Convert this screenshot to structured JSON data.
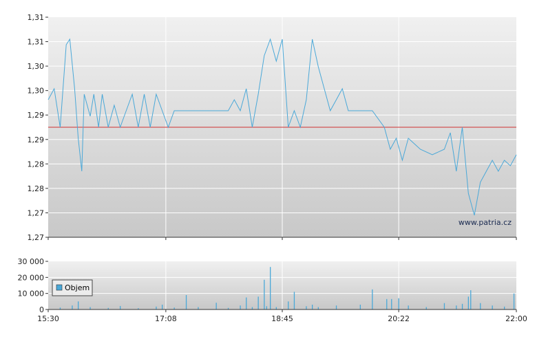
{
  "watermark": "www.patria.cz",
  "colors": {
    "price_line": "#4aa8d8",
    "reference_line": "#d03030",
    "volume_bar": "#4aa8d8",
    "grid": "#ffffff",
    "legend_swatch": "#4aa8d8"
  },
  "chart_data": [
    {
      "type": "line",
      "title": "",
      "x_ticks": [
        "15:30",
        "17:08",
        "18:45",
        "20:22",
        "22:00"
      ],
      "x_range": [
        "15:30",
        "22:00"
      ],
      "y_range": [
        1.27,
        1.31
      ],
      "y_ticks": [
        "1,27",
        "1,27",
        "1,28",
        "1,28",
        "1,29",
        "1,29",
        "1,30",
        "1,30",
        "1,31",
        "1,31"
      ],
      "reference_line": 1.29,
      "grid": true,
      "series": [
        {
          "values_x": [
            "15:30",
            "15:35",
            "15:40",
            "15:45",
            "15:48",
            "15:52",
            "15:55",
            "15:58",
            "16:00",
            "16:05",
            "16:08",
            "16:12",
            "16:15",
            "16:20",
            "16:25",
            "16:30",
            "16:35",
            "16:40",
            "16:45",
            "16:50",
            "16:55",
            "17:00",
            "17:05",
            "17:10",
            "17:15",
            "17:20",
            "17:30",
            "17:40",
            "17:50",
            "18:00",
            "18:05",
            "18:10",
            "18:15",
            "18:20",
            "18:25",
            "18:30",
            "18:35",
            "18:40",
            "18:45",
            "18:50",
            "18:55",
            "19:00",
            "19:05",
            "19:10",
            "19:15",
            "19:20",
            "19:25",
            "19:30",
            "19:35",
            "19:40",
            "19:50",
            "20:00",
            "20:10",
            "20:15",
            "20:20",
            "20:25",
            "20:30",
            "20:35",
            "20:40",
            "20:50",
            "21:00",
            "21:05",
            "21:10",
            "21:15",
            "21:20",
            "21:25",
            "21:30",
            "21:35",
            "21:40",
            "21:45",
            "21:50",
            "21:55",
            "22:00"
          ],
          "values_y": [
            1.295,
            1.297,
            1.29,
            1.305,
            1.306,
            1.297,
            1.288,
            1.282,
            1.296,
            1.292,
            1.296,
            1.29,
            1.296,
            1.29,
            1.294,
            1.29,
            1.293,
            1.296,
            1.29,
            1.296,
            1.29,
            1.296,
            1.293,
            1.29,
            1.293,
            1.293,
            1.293,
            1.293,
            1.293,
            1.293,
            1.295,
            1.293,
            1.297,
            1.29,
            1.296,
            1.303,
            1.306,
            1.302,
            1.306,
            1.29,
            1.293,
            1.29,
            1.295,
            1.306,
            1.301,
            1.297,
            1.293,
            1.295,
            1.297,
            1.293,
            1.293,
            1.293,
            1.29,
            1.286,
            1.288,
            1.284,
            1.288,
            1.287,
            1.286,
            1.285,
            1.286,
            1.289,
            1.282,
            1.29,
            1.278,
            1.274,
            1.28,
            1.282,
            1.284,
            1.282,
            1.284,
            1.283,
            1.285
          ]
        }
      ]
    },
    {
      "type": "bar",
      "title": "",
      "x_ticks": [
        "15:30",
        "17:08",
        "18:45",
        "20:22",
        "22:00"
      ],
      "y_ticks": [
        "0",
        "10 000",
        "20 000",
        "30 000"
      ],
      "y_range": [
        0,
        30000
      ],
      "legend": [
        "Objem"
      ],
      "legend_position": "left",
      "series": [
        {
          "name": "Objem",
          "times": [
            "15:40",
            "15:50",
            "15:55",
            "16:05",
            "16:20",
            "16:30",
            "16:45",
            "17:00",
            "17:05",
            "17:15",
            "17:25",
            "17:35",
            "17:50",
            "18:00",
            "18:10",
            "18:15",
            "18:20",
            "18:25",
            "18:30",
            "18:32",
            "18:35",
            "18:40",
            "18:50",
            "18:55",
            "19:05",
            "19:10",
            "19:15",
            "19:30",
            "19:50",
            "20:00",
            "20:12",
            "20:16",
            "20:22",
            "20:30",
            "20:45",
            "21:00",
            "21:10",
            "21:15",
            "21:20",
            "21:22",
            "21:30",
            "21:40",
            "21:50",
            "21:58"
          ],
          "values": [
            1200,
            2500,
            5000,
            1500,
            1000,
            2200,
            800,
            1800,
            3000,
            1200,
            9000,
            1500,
            4200,
            1000,
            2500,
            7500,
            1500,
            8000,
            18500,
            2000,
            26500,
            1500,
            5000,
            11000,
            2000,
            3000,
            1500,
            2500,
            3000,
            12500,
            6500,
            6500,
            7000,
            2500,
            1500,
            4000,
            2500,
            3500,
            8000,
            12000,
            4000,
            2500,
            1800,
            10000
          ]
        }
      ]
    }
  ]
}
